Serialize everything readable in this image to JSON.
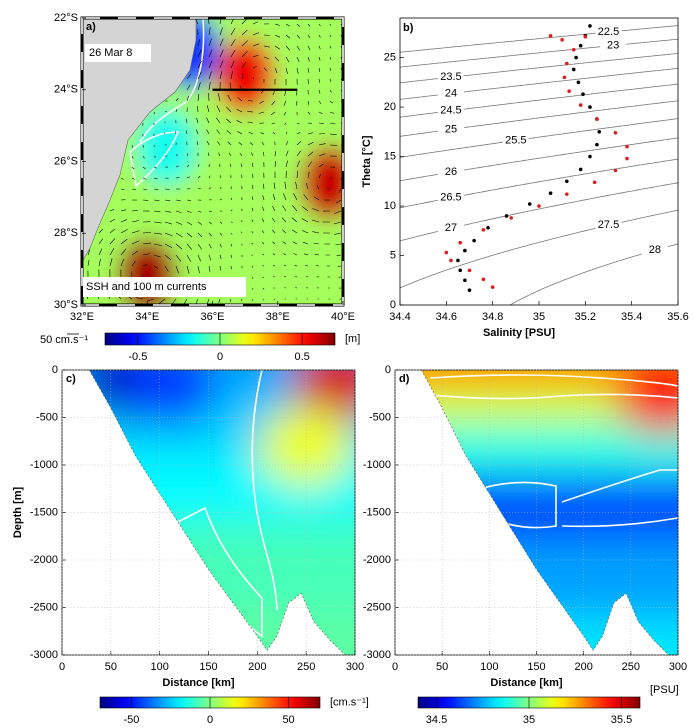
{
  "chart_data": [
    {
      "type": "map",
      "panel_label": "a)",
      "date_label": "26 Mar 8",
      "annotation": "SSH and 100 m currents",
      "xlim": [
        32,
        40
      ],
      "xticks": [
        {
          "value": 32,
          "label": "32°E"
        },
        {
          "value": 34,
          "label": "34°E"
        },
        {
          "value": 36,
          "label": "36°E"
        },
        {
          "value": 38,
          "label": "38°E"
        },
        {
          "value": 40,
          "label": "40°E"
        }
      ],
      "ylim": [
        -30,
        -22
      ],
      "yticks": [
        {
          "value": -30,
          "label": "30°S"
        },
        {
          "value": -28,
          "label": "28°S"
        },
        {
          "value": -26,
          "label": "26°S"
        },
        {
          "value": -24,
          "label": "24°S"
        },
        {
          "value": -22,
          "label": "22°S"
        }
      ],
      "background_ssh": 0.05,
      "eddies": [
        {
          "lon": 37,
          "lat": -23.6,
          "ssh": 0.55
        },
        {
          "lon": 39.6,
          "lat": -26.6,
          "ssh": 0.6
        },
        {
          "lon": 34,
          "lat": -29.2,
          "ssh": 0.65
        },
        {
          "lon": 35.3,
          "lat": -22.9,
          "ssh": -0.45
        },
        {
          "lon": 34.6,
          "lat": -25.6,
          "ssh": -0.15
        }
      ],
      "section": {
        "lon": [
          36,
          38.6
        ],
        "lat": -24
      },
      "colorbar": {
        "label": "[m]",
        "lim": [
          -0.7,
          0.7
        ],
        "ticks": [
          -0.5,
          0,
          0.5
        ]
      },
      "vector_scale_label": "50 cm.s⁻¹"
    },
    {
      "type": "scatter",
      "panel_label": "b)",
      "x_label": "Salinity [PSU]",
      "y_label": "Theta [°C]",
      "xlim": [
        34.4,
        35.6
      ],
      "xticks": [
        34.4,
        34.6,
        34.8,
        35,
        35.2,
        35.4,
        35.6
      ],
      "ylim": [
        0,
        29
      ],
      "yticks": [
        0,
        5,
        10,
        15,
        20,
        25
      ],
      "contours": [
        22.5,
        23,
        23.5,
        24,
        24.5,
        25,
        25.5,
        26,
        26.5,
        27,
        27.5,
        28
      ],
      "series": [
        {
          "color": "#000000",
          "x": [
            34.7,
            34.68,
            34.66,
            34.65,
            34.68,
            34.72,
            34.78,
            34.86,
            34.96,
            35.05,
            35.12,
            35.18,
            35.22,
            35.25,
            35.26,
            35.25,
            35.22,
            35.19,
            35.17,
            35.15,
            35.16,
            35.18,
            35.2,
            35.22
          ],
          "y": [
            1.5,
            2.5,
            3.5,
            4.5,
            5.5,
            6.5,
            7.8,
            9,
            10.2,
            11.3,
            12.5,
            13.7,
            15,
            16.2,
            17.5,
            18.8,
            20,
            21.3,
            22.5,
            23.8,
            25,
            26.2,
            27.2,
            28.2
          ]
        },
        {
          "color": "#e41a1c",
          "x": [
            34.8,
            34.76,
            34.7,
            34.62,
            34.6,
            34.66,
            34.76,
            34.88,
            35.0,
            35.12,
            35.24,
            35.33,
            35.38,
            35.38,
            35.33,
            35.25,
            35.18,
            35.13,
            35.11,
            35.12,
            35.15,
            35.1,
            35.05,
            35.2
          ],
          "y": [
            1.8,
            2.6,
            3.5,
            4.5,
            5.3,
            6.3,
            7.6,
            8.8,
            10,
            11.2,
            12.4,
            13.6,
            14.8,
            16,
            17.4,
            18.8,
            20.2,
            21.6,
            23,
            24.4,
            25.8,
            26.8,
            27.2,
            27.1
          ]
        }
      ]
    },
    {
      "type": "section",
      "panel_label": "c)",
      "x_label": "Distance [km]",
      "y_label": "Depth [m]",
      "grid": true,
      "xlim": [
        0,
        300
      ],
      "xticks": [
        0,
        50,
        100,
        150,
        200,
        250,
        300
      ],
      "ylim": [
        -3000,
        0
      ],
      "yticks": [
        -3000,
        -2500,
        -2000,
        -1500,
        -1000,
        -500,
        0
      ],
      "bottom": {
        "distance": [
          28,
          50,
          75,
          100,
          125,
          150,
          175,
          200,
          210,
          220,
          232,
          245,
          258,
          275,
          290,
          300
        ],
        "depth": [
          0,
          -400,
          -900,
          -1300,
          -1700,
          -2100,
          -2450,
          -2800,
          -2950,
          -2800,
          -2450,
          -2350,
          -2650,
          -2850,
          -3000,
          -3000
        ]
      },
      "layers": [
        {
          "depth": 0,
          "value": -30
        },
        {
          "depth": -600,
          "value": -24
        },
        {
          "depth": -1200,
          "value": -18
        },
        {
          "depth": -2000,
          "value": -8
        },
        {
          "depth": -3000,
          "value": -5
        }
      ],
      "cores": [
        {
          "distance": 65,
          "depth": -100,
          "value": -62
        },
        {
          "distance": 110,
          "depth": -150,
          "value": -45
        },
        {
          "distance": 285,
          "depth": -100,
          "value": 58
        },
        {
          "distance": 250,
          "depth": -800,
          "value": 15
        }
      ],
      "colorbar": {
        "label": "[cm.s⁻¹]",
        "lim": [
          -70,
          70
        ],
        "ticks": [
          -50,
          0,
          50
        ]
      }
    },
    {
      "type": "section",
      "panel_label": "d)",
      "x_label": "Distance [km]",
      "grid": true,
      "xlim": [
        0,
        300
      ],
      "xticks": [
        0,
        50,
        100,
        150,
        200,
        250,
        300
      ],
      "ylim": [
        -3000,
        0
      ],
      "yticks": [
        -3000,
        -2500,
        -2000,
        -1500,
        -1000,
        -500,
        0
      ],
      "bottom": {
        "distance": [
          28,
          50,
          75,
          100,
          125,
          150,
          175,
          200,
          210,
          220,
          232,
          245,
          258,
          275,
          290,
          300
        ],
        "depth": [
          0,
          -400,
          -900,
          -1300,
          -1700,
          -2100,
          -2450,
          -2800,
          -2950,
          -2800,
          -2450,
          -2350,
          -2650,
          -2850,
          -3000,
          -3000
        ]
      },
      "layers": [
        {
          "depth": 0,
          "value": 35.28
        },
        {
          "depth": -350,
          "value": 35.1
        },
        {
          "depth": -800,
          "value": 34.88
        },
        {
          "depth": -1400,
          "value": 34.64
        },
        {
          "depth": -2200,
          "value": 34.74
        },
        {
          "depth": -3000,
          "value": 34.82
        }
      ],
      "cores": [
        {
          "distance": 285,
          "depth": -250,
          "value": 35.45
        }
      ],
      "colorbar": {
        "label": "[PSU]",
        "lim": [
          34.4,
          35.6
        ],
        "ticks": [
          34.5,
          35,
          35.5
        ]
      }
    }
  ]
}
